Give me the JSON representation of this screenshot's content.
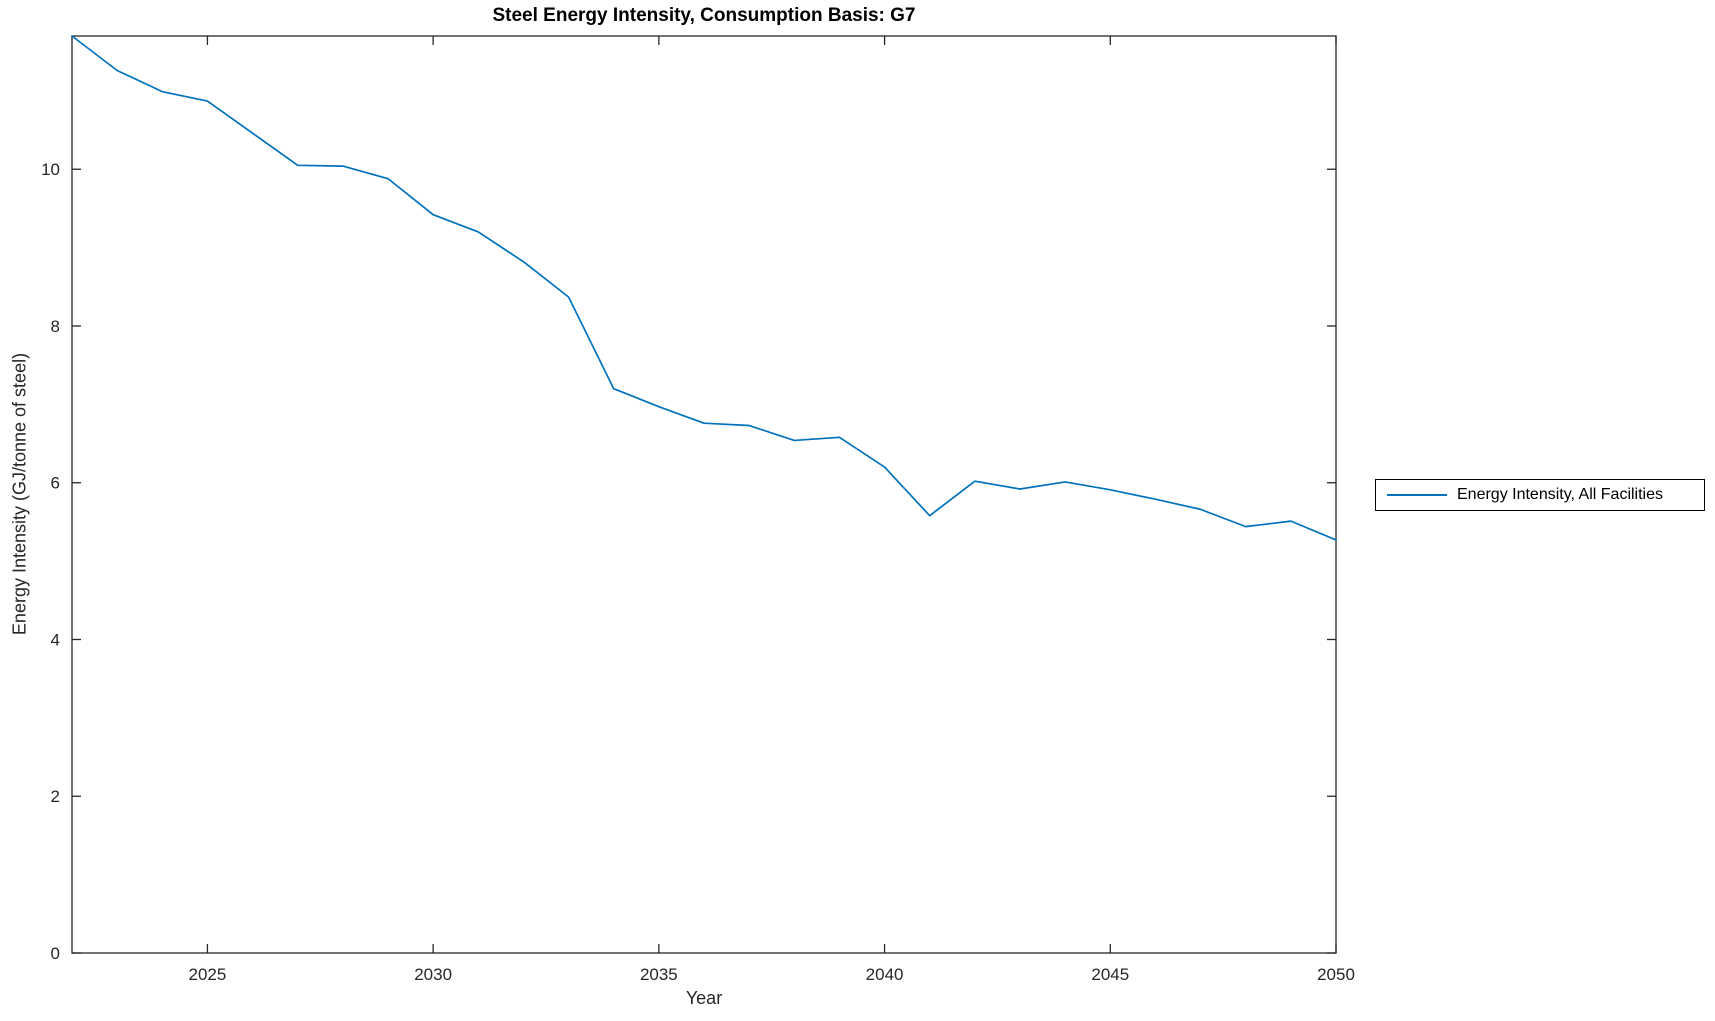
{
  "figure": {
    "background": "#ffffff"
  },
  "chart_data": {
    "type": "line",
    "title": "Steel Energy Intensity, Consumption Basis: G7",
    "xlabel": "Year",
    "ylabel": "Energy Intensity (GJ/tonne of steel)",
    "x": [
      2022,
      2023,
      2024,
      2025,
      2026,
      2027,
      2028,
      2029,
      2030,
      2031,
      2032,
      2033,
      2034,
      2035,
      2036,
      2037,
      2038,
      2039,
      2040,
      2041,
      2042,
      2043,
      2044,
      2045,
      2046,
      2047,
      2048,
      2049,
      2050
    ],
    "series": [
      {
        "name": "Energy Intensity, All Facilities",
        "color": "#0072BD",
        "values": [
          11.7,
          11.26,
          10.99,
          10.87,
          10.46,
          10.05,
          10.04,
          9.88,
          9.42,
          9.2,
          8.82,
          8.37,
          7.2,
          6.97,
          6.76,
          6.73,
          6.54,
          6.58,
          6.2,
          5.58,
          6.02,
          5.92,
          6.01,
          5.91,
          5.79,
          5.66,
          5.44,
          5.51,
          5.27
        ]
      }
    ],
    "xlim": [
      2022,
      2050
    ],
    "ylim": [
      0,
      11.7
    ],
    "xticks": [
      2025,
      2030,
      2035,
      2040,
      2045,
      2050
    ],
    "yticks": [
      0,
      2,
      4,
      6,
      8,
      10
    ],
    "grid": false,
    "box": true,
    "tick_direction": "in",
    "axis_color": "#262626",
    "legend_position": "right-outside"
  },
  "legend": {
    "items": [
      {
        "label": "Energy Intensity, All Facilities",
        "color": "#0072BD"
      }
    ]
  }
}
